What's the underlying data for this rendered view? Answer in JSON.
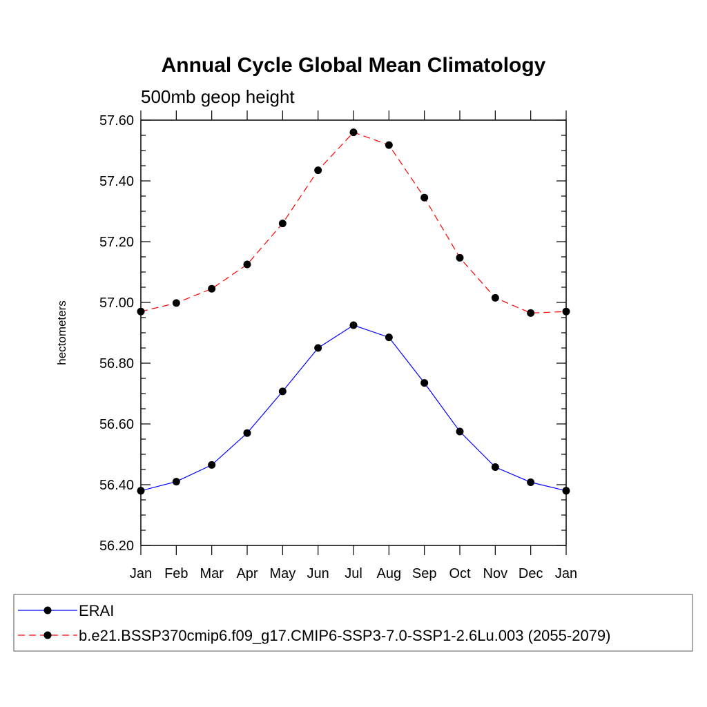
{
  "chart_data": {
    "type": "line",
    "title": "Annual Cycle Global Mean Climatology",
    "subtitle": "500mb geop height",
    "xlabel": "",
    "ylabel": "hectometers",
    "categories": [
      "Jan",
      "Feb",
      "Mar",
      "Apr",
      "May",
      "Jun",
      "Jul",
      "Aug",
      "Sep",
      "Oct",
      "Nov",
      "Dec",
      "Jan"
    ],
    "ylim": [
      56.2,
      57.6
    ],
    "yticks": [
      56.2,
      56.4,
      56.6,
      56.8,
      57.0,
      57.2,
      57.4,
      57.6
    ],
    "ytick_labels": [
      "56.20",
      "56.40",
      "56.60",
      "56.80",
      "57.00",
      "57.20",
      "57.40",
      "57.60"
    ],
    "grid": false,
    "legend_position": "bottom",
    "series": [
      {
        "name": "ERAI",
        "color": "#0000ff",
        "dash": "solid",
        "marker": "circle",
        "values": [
          56.38,
          56.41,
          56.465,
          56.57,
          56.707,
          56.85,
          56.925,
          56.885,
          56.735,
          56.575,
          56.458,
          56.408,
          56.38
        ]
      },
      {
        "name": "b.e21.BSSP370cmip6.f09_g17.CMIP6-SSP3-7.0-SSP1-2.6Lu.003 (2055-2079)",
        "color": "#ff0000",
        "dash": "dashed",
        "marker": "circle",
        "values": [
          56.97,
          56.998,
          57.045,
          57.125,
          57.26,
          57.435,
          57.56,
          57.518,
          57.345,
          57.147,
          57.015,
          56.965,
          56.97
        ]
      }
    ]
  }
}
